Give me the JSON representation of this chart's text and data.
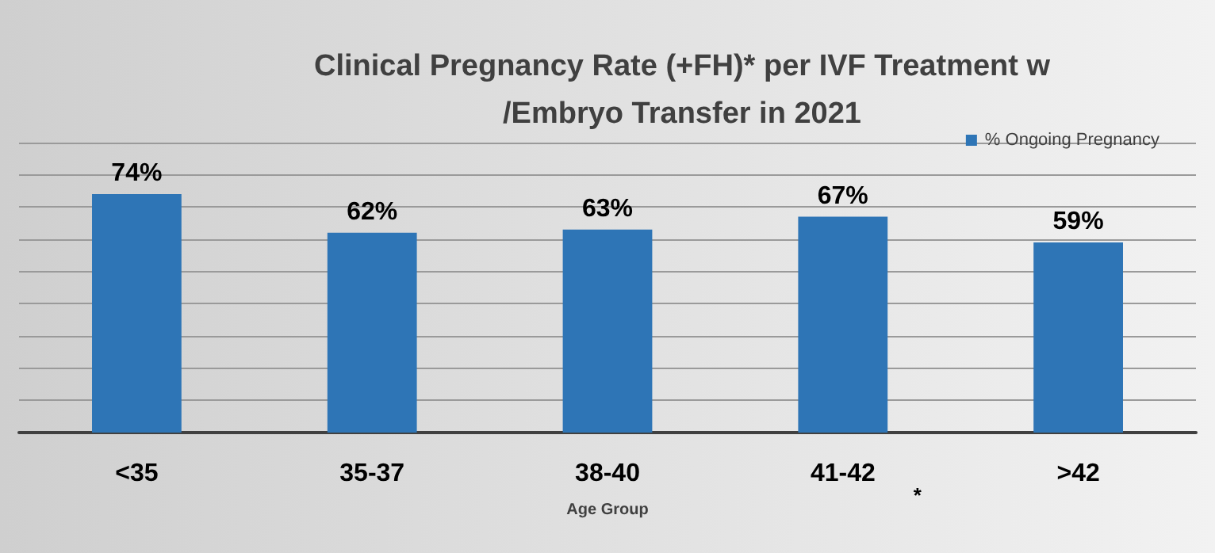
{
  "chart_data": {
    "type": "bar",
    "title": "Clinical Pregnancy Rate (+FH)* per IVF Treatment w/Embryo Transfer in 2021",
    "xlabel": "Age Group",
    "categories": [
      "<35",
      "35-37",
      "38-40",
      "41-42",
      ">42"
    ],
    "series": [
      {
        "name": "% Ongoing Pregnancy",
        "color": "#2e75b6",
        "values": [
          74,
          62,
          63,
          67,
          59
        ],
        "value_labels": [
          "74%",
          "62%",
          "63%",
          "67%",
          "59%"
        ]
      }
    ],
    "ylim": [
      0,
      90
    ],
    "yticks": [
      {
        "value": 0,
        "label": null
      },
      {
        "value": 10,
        "label": null
      },
      {
        "value": 20,
        "label": null
      },
      {
        "value": 30,
        "label": null
      },
      {
        "value": 40,
        "label": null
      },
      {
        "value": 50,
        "label": null
      },
      {
        "value": 60,
        "label": null
      },
      {
        "value": 70,
        "label": null
      },
      {
        "value": 80,
        "label": null
      },
      {
        "value": 90,
        "label": null
      }
    ],
    "annotations": [
      "*"
    ],
    "grid": "y",
    "legend": "top right",
    "tick_labels": "x"
  }
}
